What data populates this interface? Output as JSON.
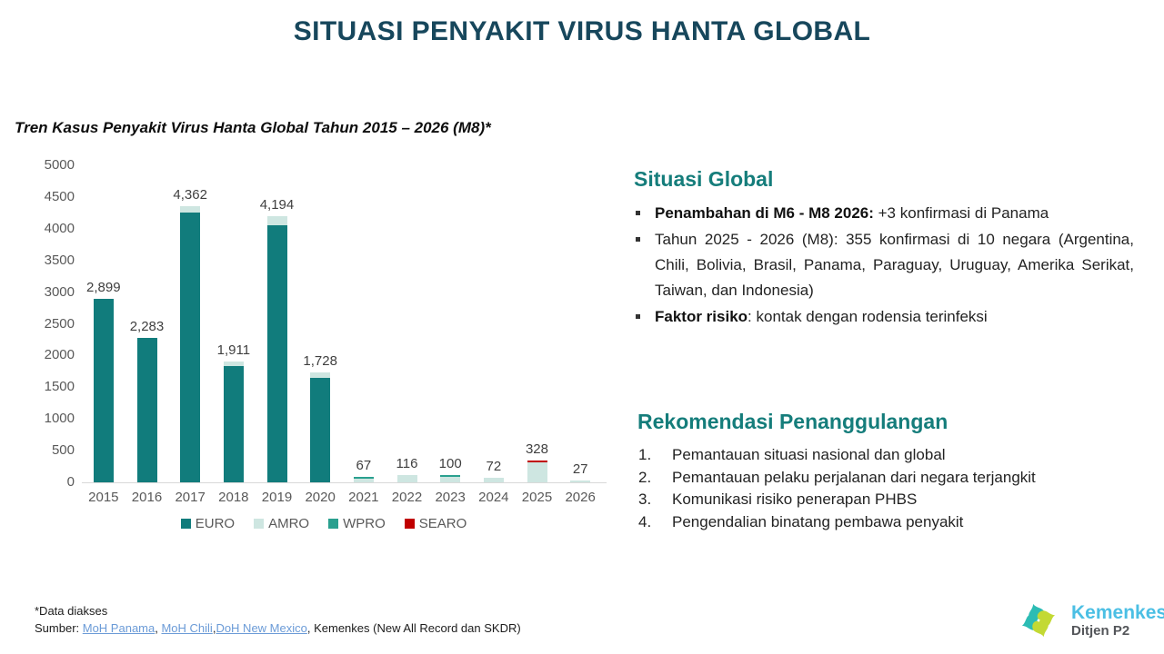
{
  "slide": {
    "title": "SITUASI PENYAKIT VIRUS HANTA GLOBAL"
  },
  "chart_data": {
    "type": "bar",
    "stacked": true,
    "title": "Tren Kasus Penyakit Virus Hanta Global Tahun 2015 – 2026 (M8)*",
    "categories": [
      "2015",
      "2016",
      "2017",
      "2018",
      "2019",
      "2020",
      "2021",
      "2022",
      "2023",
      "2024",
      "2025",
      "2026"
    ],
    "series": [
      {
        "name": "EURO",
        "color": "#117c7c",
        "values": [
          2899,
          2283,
          4260,
          1830,
          4050,
          1650,
          0,
          0,
          0,
          0,
          0,
          0
        ]
      },
      {
        "name": "AMRO",
        "color": "#cee6e1",
        "values": [
          0,
          0,
          102,
          81,
          144,
          78,
          55,
          116,
          85,
          72,
          320,
          27
        ]
      },
      {
        "name": "WPRO",
        "color": "#2aa08f",
        "values": [
          0,
          0,
          0,
          0,
          0,
          0,
          12,
          0,
          15,
          0,
          0,
          0
        ]
      },
      {
        "name": "SEARO",
        "color": "#c00000",
        "values": [
          0,
          0,
          0,
          0,
          0,
          0,
          0,
          0,
          0,
          0,
          8,
          0
        ]
      }
    ],
    "totals": [
      2899,
      2283,
      4362,
      1911,
      4194,
      1728,
      67,
      116,
      100,
      72,
      328,
      27
    ],
    "total_labels": [
      "2,899",
      "2,283",
      "4,362",
      "1,911",
      "4,194",
      "1,728",
      "67",
      "116",
      "100",
      "72",
      "328",
      "27"
    ],
    "ylim": [
      0,
      5000
    ],
    "ytick_step": 500,
    "grid": false,
    "legend_position": "bottom"
  },
  "situasi_global": {
    "heading": "Situasi Global",
    "bullets": [
      {
        "bold": "Penambahan di M6 - M8 2026:",
        "rest": " +3 konfirmasi di Panama"
      },
      {
        "bold": "",
        "rest": "Tahun 2025 - 2026 (M8): 355 konfirmasi di 10 negara (Argentina, Chili, Bolivia, Brasil, Panama, Paraguay, Uruguay, Amerika Serikat, Taiwan, dan Indonesia)"
      },
      {
        "bold": "Faktor risiko",
        "rest": ": kontak dengan rodensia terinfeksi"
      }
    ]
  },
  "rekomendasi": {
    "heading": "Rekomendasi Penanggulangan",
    "items": [
      "Pemantauan situasi nasional dan global",
      "Pemantauan pelaku perjalanan dari negara terjangkit",
      "Komunikasi risiko penerapan PHBS",
      "Pengendalian binatang pembawa penyakit"
    ],
    "numbers": [
      "1.",
      "2.",
      "3.",
      "4."
    ]
  },
  "footer": {
    "note": "*Data diakses",
    "prefix": "Sumber: ",
    "link_panama": "MoH Panama",
    "sep1": ", ",
    "link_chili": "MoH Chili",
    "sep2": ",",
    "link_nm": "DoH New Mexico",
    "sep3": ", ",
    "suffix": "Kemenkes (New All Record dan SKDR)"
  },
  "logo": {
    "brand": "Kemenkes",
    "sub": "Ditjen P2",
    "teal": "#2cbcb4",
    "green": "#c3d934"
  },
  "colors": {
    "title": "#17475c",
    "heading_teal": "#157d7b",
    "axis_text": "#595959",
    "value_text": "#3f3f3f",
    "axis_line": "#d9d9d9",
    "link": "#6b9bd7"
  }
}
